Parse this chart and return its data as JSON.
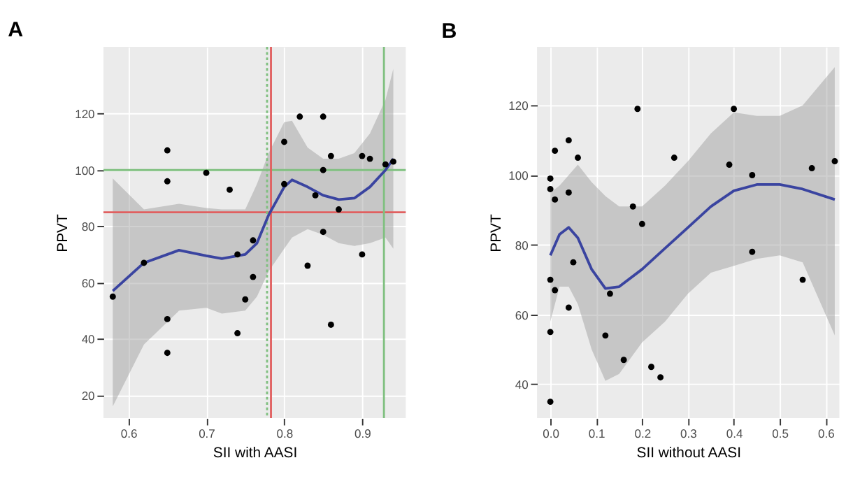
{
  "chart_data": [
    {
      "type": "scatter",
      "title": "A",
      "xlabel": "SII with AASI",
      "ylabel": "PPVT",
      "xlim": [
        0.568,
        0.956
      ],
      "ylim": [
        11.8,
        143.8
      ],
      "xticks": [
        {
          "value": 0.6,
          "label": "0.6"
        },
        {
          "value": 0.7,
          "label": "0.7"
        },
        {
          "value": 0.8,
          "label": "0.8"
        },
        {
          "value": 0.9,
          "label": "0.9"
        }
      ],
      "yticks": [
        20,
        40,
        60,
        80,
        100,
        120
      ],
      "grid": true,
      "series": [
        {
          "type": "scatter",
          "marker": "circle",
          "color": "#000000",
          "x": [
            0.58,
            0.62,
            0.65,
            0.65,
            0.65,
            0.65,
            0.7,
            0.73,
            0.74,
            0.74,
            0.75,
            0.76,
            0.76,
            0.8,
            0.8,
            0.82,
            0.83,
            0.84,
            0.85,
            0.85,
            0.85,
            0.86,
            0.86,
            0.87,
            0.9,
            0.9,
            0.91,
            0.93,
            0.94
          ],
          "values": [
            55,
            67,
            107,
            96,
            47,
            35,
            99,
            93,
            70,
            42,
            54,
            75,
            62,
            110,
            95,
            119,
            66,
            91,
            119,
            100,
            78,
            105,
            45,
            86,
            105,
            70,
            104,
            102,
            103
          ]
        },
        {
          "type": "line",
          "color": "#3a44a0",
          "line_style": "solid",
          "x": [
            0.58,
            0.62,
            0.665,
            0.7,
            0.72,
            0.75,
            0.765,
            0.78,
            0.8,
            0.81,
            0.83,
            0.85,
            0.87,
            0.89,
            0.91,
            0.93,
            0.94
          ],
          "values": [
            57,
            67,
            71.5,
            69.5,
            68.5,
            70,
            74,
            84,
            94,
            96.5,
            94,
            91,
            89.5,
            90,
            94,
            100,
            104
          ],
          "upper": [
            97,
            86,
            88,
            86.5,
            86,
            86,
            95,
            106,
            117,
            117.5,
            108,
            104,
            104,
            106,
            113,
            125,
            136
          ],
          "lower": [
            16,
            38,
            50,
            51,
            49,
            50,
            55,
            64,
            72,
            76,
            79,
            77,
            74,
            73,
            74,
            76,
            72
          ]
        }
      ],
      "ref_lines": [
        {
          "axis": "y",
          "value": 100,
          "color": "#80c080",
          "line_style": "solid"
        },
        {
          "axis": "y",
          "value": 85,
          "color": "#e06060",
          "line_style": "solid"
        },
        {
          "axis": "x",
          "value": 0.783,
          "color": "#e06060",
          "line_style": "solid"
        },
        {
          "axis": "x",
          "value": 0.778,
          "color": "#80c080",
          "line_style": "dotted"
        },
        {
          "axis": "x",
          "value": 0.928,
          "color": "#80c080",
          "line_style": "solid"
        }
      ]
    },
    {
      "type": "scatter",
      "title": "B",
      "xlabel": "SII without AASI",
      "ylabel": "PPVT",
      "xlim": [
        -0.029,
        0.63
      ],
      "ylim": [
        30.3,
        136.8
      ],
      "xticks": [
        {
          "value": 0,
          "label": "0.0"
        },
        {
          "value": 0.1,
          "label": "0.1"
        },
        {
          "value": 0.2,
          "label": "0.2"
        },
        {
          "value": 0.3,
          "label": "0.3"
        },
        {
          "value": 0.4,
          "label": "0.4"
        },
        {
          "value": 0.5,
          "label": "0.5"
        },
        {
          "value": 0.6,
          "label": "0.6"
        }
      ],
      "yticks": [
        40,
        60,
        80,
        100,
        120
      ],
      "grid": true,
      "series": [
        {
          "type": "scatter",
          "marker": "circle",
          "color": "#000000",
          "x": [
            0,
            0,
            0,
            0,
            0,
            0.01,
            0.01,
            0.01,
            0.04,
            0.04,
            0.04,
            0.05,
            0.06,
            0.12,
            0.13,
            0.16,
            0.18,
            0.19,
            0.2,
            0.22,
            0.24,
            0.27,
            0.39,
            0.4,
            0.44,
            0.44,
            0.55,
            0.57,
            0.62
          ],
          "values": [
            99,
            96,
            70,
            55,
            35,
            107,
            93,
            67,
            110,
            95,
            62,
            75,
            105,
            54,
            66,
            47,
            91,
            119,
            86,
            45,
            42,
            105,
            103,
            119,
            100,
            78,
            70,
            102,
            104
          ]
        },
        {
          "type": "line",
          "color": "#3a44a0",
          "line_style": "solid",
          "x": [
            0,
            0.02,
            0.04,
            0.06,
            0.09,
            0.12,
            0.15,
            0.2,
            0.25,
            0.3,
            0.35,
            0.4,
            0.45,
            0.5,
            0.55,
            0.62
          ],
          "values": [
            77,
            83,
            85,
            82,
            73,
            67.5,
            68,
            73,
            79,
            85,
            91,
            95.5,
            97.3,
            97.3,
            96,
            93
          ],
          "upper": [
            95,
            97,
            100,
            103,
            98,
            94,
            91,
            91,
            97,
            104,
            112,
            118,
            117,
            117,
            120,
            131
          ],
          "lower": [
            58,
            68,
            68,
            63,
            50,
            41,
            43,
            52,
            58,
            66,
            72,
            74,
            76,
            77,
            75,
            54
          ]
        }
      ]
    }
  ]
}
